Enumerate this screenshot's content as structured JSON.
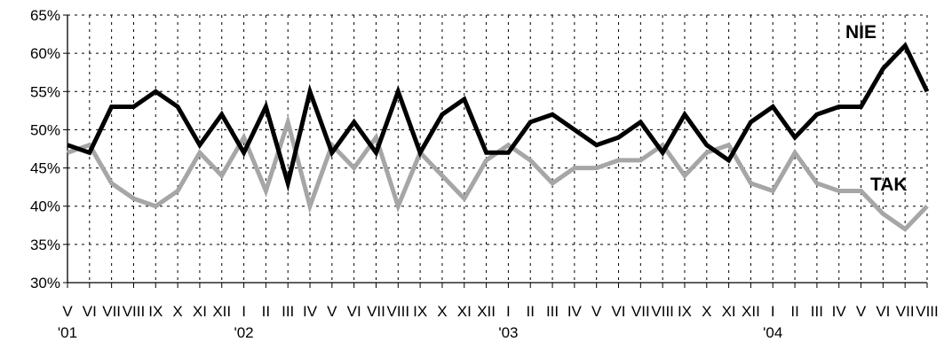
{
  "chart_data": {
    "type": "line",
    "categories": [
      "V",
      "VI",
      "VII",
      "VIII",
      "IX",
      "X",
      "XI",
      "XII",
      "I",
      "II",
      "III",
      "IV",
      "V",
      "VI",
      "VII",
      "VIII",
      "IX",
      "X",
      "XI",
      "XII",
      "I",
      "II",
      "III",
      "IV",
      "V",
      "VI",
      "VII",
      "VIII",
      "IX",
      "X",
      "XI",
      "XII",
      "I",
      "II",
      "III",
      "IV",
      "V",
      "VI",
      "VII",
      "VIII"
    ],
    "x_tick_labels": [
      "V",
      "VI",
      "VII",
      "VIII",
      "IX",
      "X",
      "XI",
      "XII",
      "I",
      "II",
      "III",
      "IV",
      "V",
      "VI",
      "VII",
      "VIII",
      "IX",
      "X",
      "XI",
      "XII",
      "I",
      "II",
      "III",
      "IV",
      "V",
      "VI",
      "VII",
      "VIII",
      "IX",
      "X",
      "XI",
      "XII",
      "I",
      "II",
      "III",
      "IV",
      "V",
      "VI",
      "VII",
      "VIII"
    ],
    "year_labels": [
      {
        "index": 0,
        "label": "'01"
      },
      {
        "index": 8,
        "label": "'02"
      },
      {
        "index": 20,
        "label": "'03"
      },
      {
        "index": 32,
        "label": "'04"
      }
    ],
    "series": [
      {
        "name": "NIE",
        "color": "#000000",
        "values": [
          48,
          47,
          53,
          53,
          55,
          53,
          48,
          52,
          47,
          53,
          43,
          55,
          47,
          51,
          47,
          55,
          47,
          52,
          54,
          47,
          47,
          51,
          52,
          50,
          48,
          49,
          51,
          47,
          52,
          48,
          46,
          51,
          53,
          49,
          52,
          53,
          53,
          58,
          61,
          55
        ]
      },
      {
        "name": "TAK",
        "color": "#a6a6a6",
        "values": [
          47,
          48,
          43,
          41,
          40,
          42,
          47,
          44,
          49,
          42,
          51,
          40,
          48,
          45,
          49,
          40,
          47,
          44,
          41,
          46,
          48,
          46,
          43,
          45,
          45,
          46,
          46,
          48,
          44,
          47,
          48,
          43,
          42,
          47,
          43,
          42,
          42,
          39,
          37,
          40
        ]
      }
    ],
    "ylim": [
      30,
      65
    ],
    "y_ticks": [
      "30%",
      "35%",
      "40%",
      "45%",
      "50%",
      "55%",
      "60%",
      "65%"
    ],
    "grid": true,
    "title": "",
    "xlabel": "",
    "ylabel": ""
  }
}
